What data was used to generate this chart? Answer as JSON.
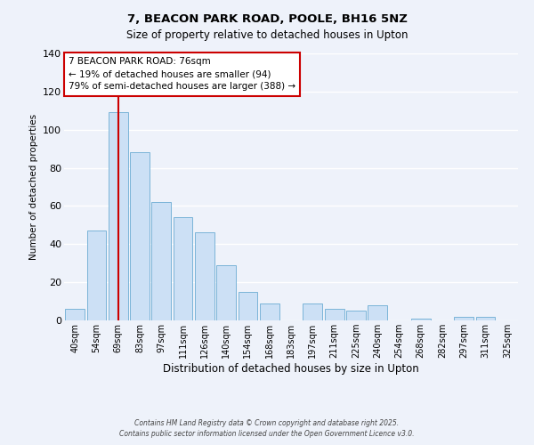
{
  "title": "7, BEACON PARK ROAD, POOLE, BH16 5NZ",
  "subtitle": "Size of property relative to detached houses in Upton",
  "xlabel": "Distribution of detached houses by size in Upton",
  "ylabel": "Number of detached properties",
  "bar_labels": [
    "40sqm",
    "54sqm",
    "69sqm",
    "83sqm",
    "97sqm",
    "111sqm",
    "126sqm",
    "140sqm",
    "154sqm",
    "168sqm",
    "183sqm",
    "197sqm",
    "211sqm",
    "225sqm",
    "240sqm",
    "254sqm",
    "268sqm",
    "282sqm",
    "297sqm",
    "311sqm",
    "325sqm"
  ],
  "bar_values": [
    6,
    47,
    109,
    88,
    62,
    54,
    46,
    29,
    15,
    9,
    0,
    9,
    6,
    5,
    8,
    0,
    1,
    0,
    2,
    2,
    0
  ],
  "bar_color": "#cce0f5",
  "bar_edge_color": "#7ab4d8",
  "background_color": "#eef2fa",
  "grid_color": "#ffffff",
  "vline_x": 2.0,
  "vline_color": "#cc0000",
  "annotation_line1": "7 BEACON PARK ROAD: 76sqm",
  "annotation_line2": "← 19% of detached houses are smaller (94)",
  "annotation_line3": "79% of semi-detached houses are larger (388) →",
  "annotation_box_color": "#ffffff",
  "annotation_box_edge": "#cc0000",
  "ylim": [
    0,
    140
  ],
  "yticks": [
    0,
    20,
    40,
    60,
    80,
    100,
    120,
    140
  ],
  "title_fontsize": 9.5,
  "subtitle_fontsize": 8.5,
  "footer1": "Contains HM Land Registry data © Crown copyright and database right 2025.",
  "footer2": "Contains public sector information licensed under the Open Government Licence v3.0."
}
